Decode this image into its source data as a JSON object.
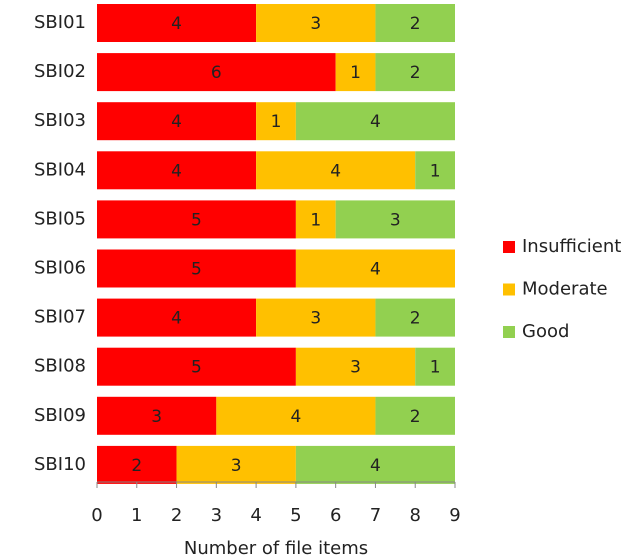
{
  "chart_data": {
    "type": "stacked-bar-horizontal",
    "x_label": "Number of file items",
    "categories": [
      "SBI01",
      "SBI02",
      "SBI03",
      "SBI04",
      "SBI05",
      "SBI06",
      "SBI07",
      "SBI08",
      "SBI09",
      "SBI10"
    ],
    "series": [
      {
        "name": "Insufficient",
        "color": "#ff0000",
        "values": [
          4,
          6,
          4,
          4,
          5,
          5,
          4,
          5,
          3,
          2
        ]
      },
      {
        "name": "Moderate",
        "color": "#ffc000",
        "values": [
          3,
          1,
          1,
          4,
          1,
          4,
          3,
          3,
          4,
          3
        ]
      },
      {
        "name": "Good",
        "color": "#92d050",
        "values": [
          2,
          2,
          4,
          1,
          3,
          0,
          2,
          1,
          2,
          4
        ]
      }
    ],
    "xlim": [
      0,
      9
    ],
    "xticks": [
      0,
      1,
      2,
      3,
      4,
      5,
      6,
      7,
      8,
      9
    ],
    "legend": "right"
  }
}
